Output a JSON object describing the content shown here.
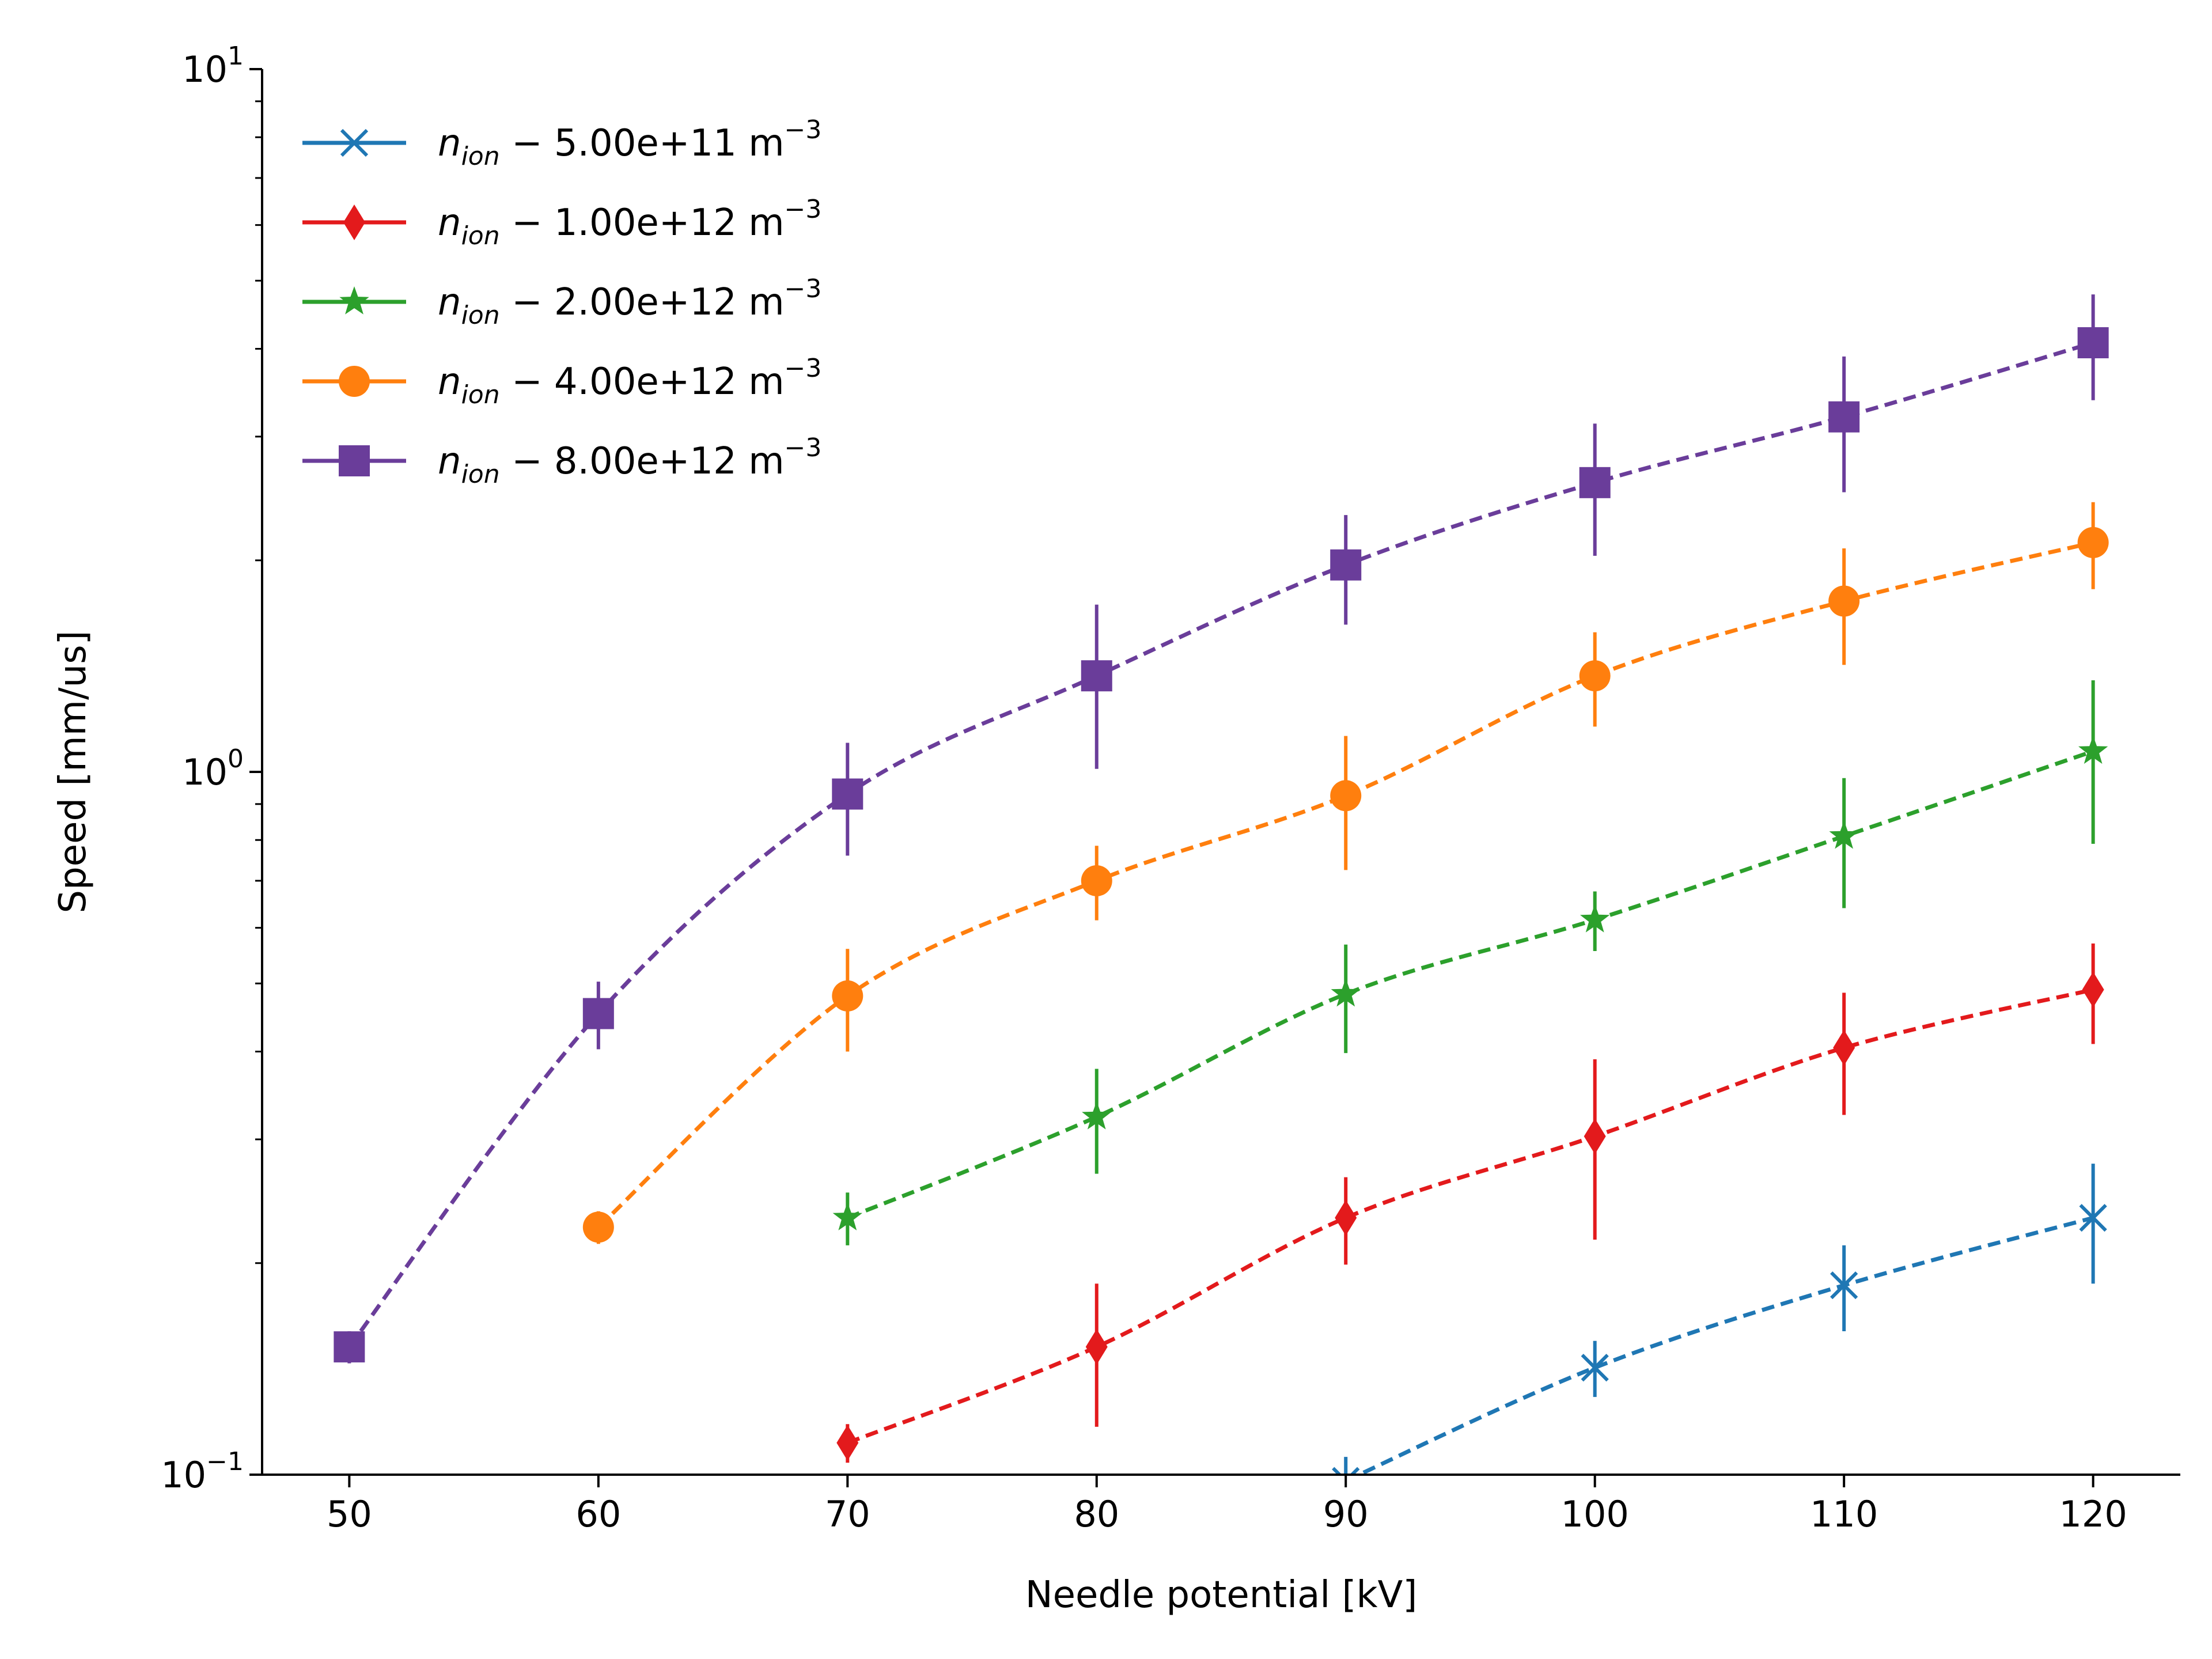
{
  "chart_data": {
    "type": "line",
    "title": "",
    "xlabel": "Needle potential [kV]",
    "ylabel": "Speed [mm/us]",
    "x_ticks": [
      "50",
      "60",
      "70",
      "80",
      "90",
      "100",
      "110",
      "120"
    ],
    "y_ticks": [
      {
        "base": "10",
        "exp": "1"
      },
      {
        "base": "10",
        "exp": "0"
      },
      {
        "base": "10",
        "exp": "−1"
      }
    ],
    "yscale": "log",
    "xlim": [
      46.5,
      123.5
    ],
    "ylim": [
      0.1,
      10
    ],
    "legend_position": "top-left",
    "series": [
      {
        "name": "n_ion − 5.00e+11 m^-3",
        "label_main": "n",
        "label_sub": "ion",
        "label_rest": " − 5.00e+11 m",
        "label_sup": "−3",
        "color": "#1f77b4",
        "marker": "x",
        "x": [
          90,
          100,
          110,
          120
        ],
        "y": [
          0.098,
          0.142,
          0.186,
          0.232
        ],
        "err": [
          0.008,
          0.013,
          0.026,
          0.045
        ]
      },
      {
        "name": "n_ion − 1.00e+12 m^-3",
        "label_main": "n",
        "label_sub": "ion",
        "label_rest": " − 1.00e+12 m",
        "label_sup": "−3",
        "color": "#e31a1c",
        "marker": "diamond",
        "x": [
          70,
          80,
          90,
          100,
          110,
          120
        ],
        "y": [
          0.111,
          0.152,
          0.232,
          0.303,
          0.405,
          0.49
        ],
        "err": [
          0.007,
          0.035,
          0.033,
          0.087,
          0.08,
          0.08
        ]
      },
      {
        "name": "n_ion − 2.00e+12 m^-3",
        "label_main": "n",
        "label_sub": "ion",
        "label_rest": " − 2.00e+12 m",
        "label_sup": "−3",
        "color": "#2ca02c",
        "marker": "star",
        "x": [
          70,
          80,
          90,
          100,
          110,
          120
        ],
        "y": [
          0.232,
          0.323,
          0.483,
          0.616,
          0.81,
          1.07
        ],
        "err": [
          0.02,
          0.055,
          0.085,
          0.06,
          0.17,
          0.28
        ]
      },
      {
        "name": "n_ion − 4.00e+12 m^-3",
        "label_main": "n",
        "label_sub": "ion",
        "label_rest": " − 4.00e+12 m",
        "label_sup": "−3",
        "color": "#ff7f0e",
        "marker": "circle",
        "x": [
          60,
          70,
          80,
          90,
          100,
          110,
          120
        ],
        "y": [
          0.225,
          0.48,
          0.7,
          0.925,
          1.37,
          1.75,
          2.12
        ],
        "err": [
          0.012,
          0.08,
          0.085,
          0.2,
          0.21,
          0.33,
          0.3
        ]
      },
      {
        "name": "n_ion − 8.00e+12 m^-3",
        "label_main": "n",
        "label_sub": "ion",
        "label_rest": " − 8.00e+12 m",
        "label_sup": "−3",
        "color": "#6a3d9a",
        "marker": "square",
        "x": [
          50,
          60,
          70,
          80,
          90,
          100,
          110,
          120
        ],
        "y": [
          0.152,
          0.453,
          0.93,
          1.37,
          1.97,
          2.58,
          3.2,
          4.08
        ],
        "err": [
          0.008,
          0.05,
          0.17,
          0.36,
          0.35,
          0.55,
          0.7,
          0.7
        ]
      }
    ]
  }
}
